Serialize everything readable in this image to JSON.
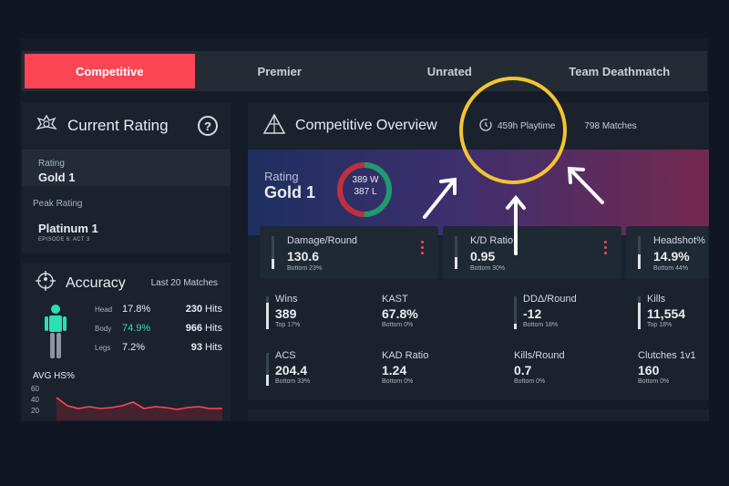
{
  "tabs": [
    {
      "label": "Competitive",
      "active": true
    },
    {
      "label": "Premier",
      "active": false
    },
    {
      "label": "Unrated",
      "active": false
    },
    {
      "label": "Team Deathmatch",
      "active": false
    }
  ],
  "current_rating": {
    "title": "Current Rating",
    "help": "?",
    "rating_label": "Rating",
    "rating_value": "Gold 1",
    "peak_label": "Peak Rating",
    "peak_value": "Platinum 1",
    "peak_episode": "EPISODE 6: ACT 3"
  },
  "accuracy": {
    "title": "Accuracy",
    "subtitle": "Last 20 Matches",
    "rows": [
      {
        "part": "Head",
        "pct": "17.8%",
        "hits": "230",
        "hits_label": "Hits"
      },
      {
        "part": "Body",
        "pct": "74.9%",
        "hits": "966",
        "hits_label": "Hits"
      },
      {
        "part": "Legs",
        "pct": "7.2%",
        "hits": "93",
        "hits_label": "Hits"
      }
    ],
    "hs_label": "AVG HS%",
    "hs_ticks": [
      "60",
      "40",
      "20"
    ],
    "accent_color": "#2ee0b0"
  },
  "overview": {
    "title": "Competitive Overview",
    "playtime": "459h Playtime",
    "matches": "798 Matches",
    "rank_label": "Rating",
    "rank_value": "Gold 1",
    "wins": "389 W",
    "losses": "387 L",
    "win_fraction": 0.501,
    "cards": [
      {
        "label": "Damage/Round",
        "value": "130.6",
        "sub": "Bottom 23%",
        "fill": 0.3
      },
      {
        "label": "K/D Ratio",
        "value": "0.95",
        "sub": "Bottom 30%",
        "fill": 0.35
      },
      {
        "label": "Headshot%",
        "value": "14.9%",
        "sub": "Bottom 44%",
        "fill": 0.45
      }
    ],
    "stats": [
      {
        "label": "Wins",
        "value": "389",
        "sub": "Top 17%",
        "fill": 0.8
      },
      {
        "label": "KAST",
        "value": "67.8%",
        "sub": "Bottom 0%",
        "fill": 0.0
      },
      {
        "label": "DDΔ/Round",
        "value": "-12",
        "sub": "Bottom 18%",
        "fill": 0.18
      },
      {
        "label": "Kills",
        "value": "11,554",
        "sub": "Top 18%",
        "fill": 0.8
      },
      {
        "label": "ACS",
        "value": "204.4",
        "sub": "Bottom 33%",
        "fill": 0.33
      },
      {
        "label": "KAD Ratio",
        "value": "1.24",
        "sub": "Bottom 0%",
        "fill": 0.0
      },
      {
        "label": "Kills/Round",
        "value": "0.7",
        "sub": "Bottom 0%",
        "fill": 0.0
      },
      {
        "label": "Clutches 1v1",
        "value": "160",
        "sub": "Bottom 0%",
        "fill": 0.0
      }
    ]
  },
  "colors": {
    "brand_red": "#ff4655",
    "annotation_yellow": "#f4c431",
    "win_green": "#1f9b6b",
    "loss_red": "#c0303c"
  },
  "icons": [
    "rank-emblem-icon",
    "help-icon",
    "crosshair-icon",
    "pyramid-icon",
    "clock-icon",
    "kebab-menu-icon",
    "agent-body-icon"
  ]
}
